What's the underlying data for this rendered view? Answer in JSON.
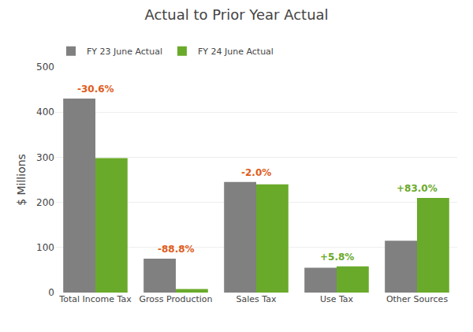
{
  "chart_data": {
    "type": "bar",
    "title": "Actual to Prior Year Actual",
    "categories": [
      "Total Income Tax",
      "Gross Production",
      "Sales Tax",
      "Use Tax",
      "Other Sources"
    ],
    "series": [
      {
        "name": "FY 23 June Actual",
        "color": "#808080",
        "values": [
          430,
          75,
          245,
          55,
          115
        ]
      },
      {
        "name": "FY 24 June Actual",
        "color": "#6aaa2a",
        "values": [
          298,
          8,
          240,
          58,
          210
        ]
      }
    ],
    "annotations": [
      {
        "category": "Total Income Tax",
        "text": "-30.6%",
        "color": "#e05c1a"
      },
      {
        "category": "Gross Production",
        "text": "-88.8%",
        "color": "#e05c1a"
      },
      {
        "category": "Sales Tax",
        "text": "-2.0%",
        "color": "#e05c1a"
      },
      {
        "category": "Use Tax",
        "text": "+5.8%",
        "color": "#6aaa2a"
      },
      {
        "category": "Other Sources",
        "text": "+83.0%",
        "color": "#6aaa2a"
      }
    ],
    "y_label": "$ Millions",
    "ylim": [
      0,
      500
    ],
    "yticks": [
      0,
      100,
      200,
      300,
      400,
      500
    ],
    "grid": true,
    "legend": "upper left"
  }
}
